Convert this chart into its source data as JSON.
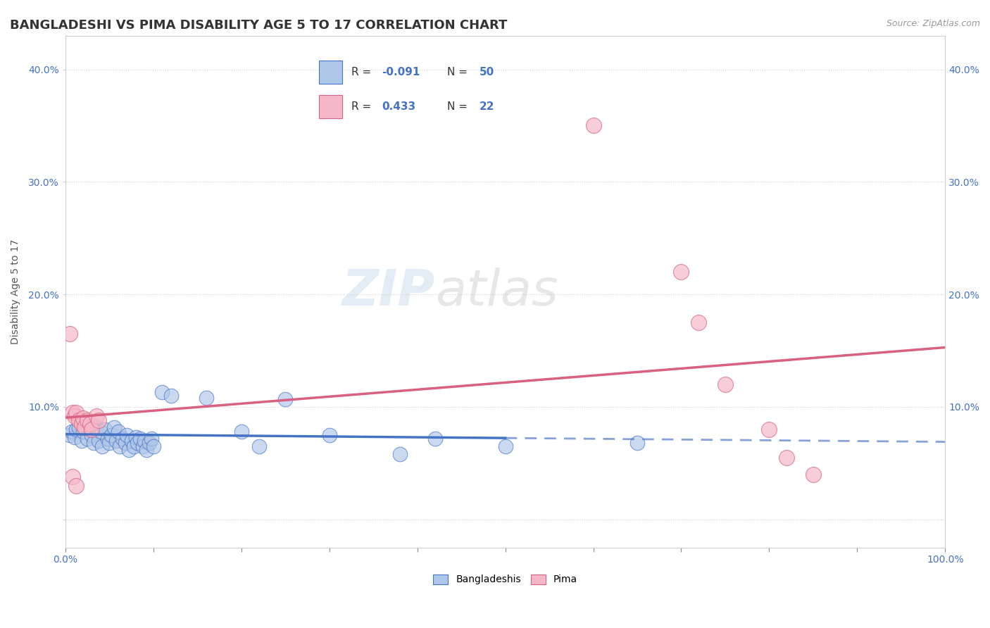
{
  "title": "BANGLADESHI VS PIMA DISABILITY AGE 5 TO 17 CORRELATION CHART",
  "source": "Source: ZipAtlas.com",
  "ylabel": "Disability Age 5 to 17",
  "xlim": [
    0.0,
    1.0
  ],
  "ylim": [
    -0.025,
    0.43
  ],
  "ytick_vals": [
    0.0,
    0.1,
    0.2,
    0.3,
    0.4
  ],
  "ytick_labels": [
    "",
    "10.0%",
    "20.0%",
    "30.0%",
    "40.0%"
  ],
  "bg_color": "#ffffff",
  "grid_color": "#d0d0d0",
  "legend_R_bangladeshi": "-0.091",
  "legend_N_bangladeshi": "50",
  "legend_R_pima": "0.433",
  "legend_N_pima": "22",
  "bangladeshi_color": "#aec6e8",
  "pima_color": "#f5b8c8",
  "bangladeshi_line_color": "#4472c4",
  "pima_line_color": "#d96080",
  "bangladeshi_scatter": [
    [
      0.005,
      0.075
    ],
    [
      0.007,
      0.078
    ],
    [
      0.01,
      0.073
    ],
    [
      0.012,
      0.08
    ],
    [
      0.015,
      0.082
    ],
    [
      0.018,
      0.07
    ],
    [
      0.02,
      0.078
    ],
    [
      0.022,
      0.085
    ],
    [
      0.025,
      0.072
    ],
    [
      0.028,
      0.08
    ],
    [
      0.03,
      0.075
    ],
    [
      0.032,
      0.068
    ],
    [
      0.035,
      0.082
    ],
    [
      0.038,
      0.07
    ],
    [
      0.04,
      0.078
    ],
    [
      0.042,
      0.065
    ],
    [
      0.045,
      0.08
    ],
    [
      0.048,
      0.072
    ],
    [
      0.05,
      0.068
    ],
    [
      0.052,
      0.075
    ],
    [
      0.055,
      0.082
    ],
    [
      0.058,
      0.07
    ],
    [
      0.06,
      0.078
    ],
    [
      0.062,
      0.065
    ],
    [
      0.065,
      0.072
    ],
    [
      0.068,
      0.068
    ],
    [
      0.07,
      0.075
    ],
    [
      0.072,
      0.062
    ],
    [
      0.075,
      0.07
    ],
    [
      0.078,
      0.065
    ],
    [
      0.08,
      0.073
    ],
    [
      0.082,
      0.068
    ],
    [
      0.085,
      0.072
    ],
    [
      0.088,
      0.065
    ],
    [
      0.09,
      0.07
    ],
    [
      0.092,
      0.062
    ],
    [
      0.095,
      0.068
    ],
    [
      0.098,
      0.072
    ],
    [
      0.1,
      0.065
    ],
    [
      0.11,
      0.113
    ],
    [
      0.12,
      0.11
    ],
    [
      0.16,
      0.108
    ],
    [
      0.2,
      0.078
    ],
    [
      0.22,
      0.065
    ],
    [
      0.25,
      0.107
    ],
    [
      0.3,
      0.075
    ],
    [
      0.38,
      0.058
    ],
    [
      0.42,
      0.072
    ],
    [
      0.5,
      0.065
    ],
    [
      0.65,
      0.068
    ]
  ],
  "pima_scatter": [
    [
      0.005,
      0.165
    ],
    [
      0.008,
      0.095
    ],
    [
      0.01,
      0.092
    ],
    [
      0.012,
      0.095
    ],
    [
      0.015,
      0.088
    ],
    [
      0.018,
      0.085
    ],
    [
      0.02,
      0.09
    ],
    [
      0.022,
      0.082
    ],
    [
      0.025,
      0.088
    ],
    [
      0.028,
      0.085
    ],
    [
      0.03,
      0.08
    ],
    [
      0.035,
      0.092
    ],
    [
      0.038,
      0.088
    ],
    [
      0.008,
      0.038
    ],
    [
      0.012,
      0.03
    ],
    [
      0.6,
      0.35
    ],
    [
      0.7,
      0.22
    ],
    [
      0.72,
      0.175
    ],
    [
      0.75,
      0.12
    ],
    [
      0.8,
      0.08
    ],
    [
      0.82,
      0.055
    ],
    [
      0.85,
      0.04
    ]
  ],
  "title_fontsize": 13,
  "axis_label_fontsize": 10,
  "tick_fontsize": 10
}
